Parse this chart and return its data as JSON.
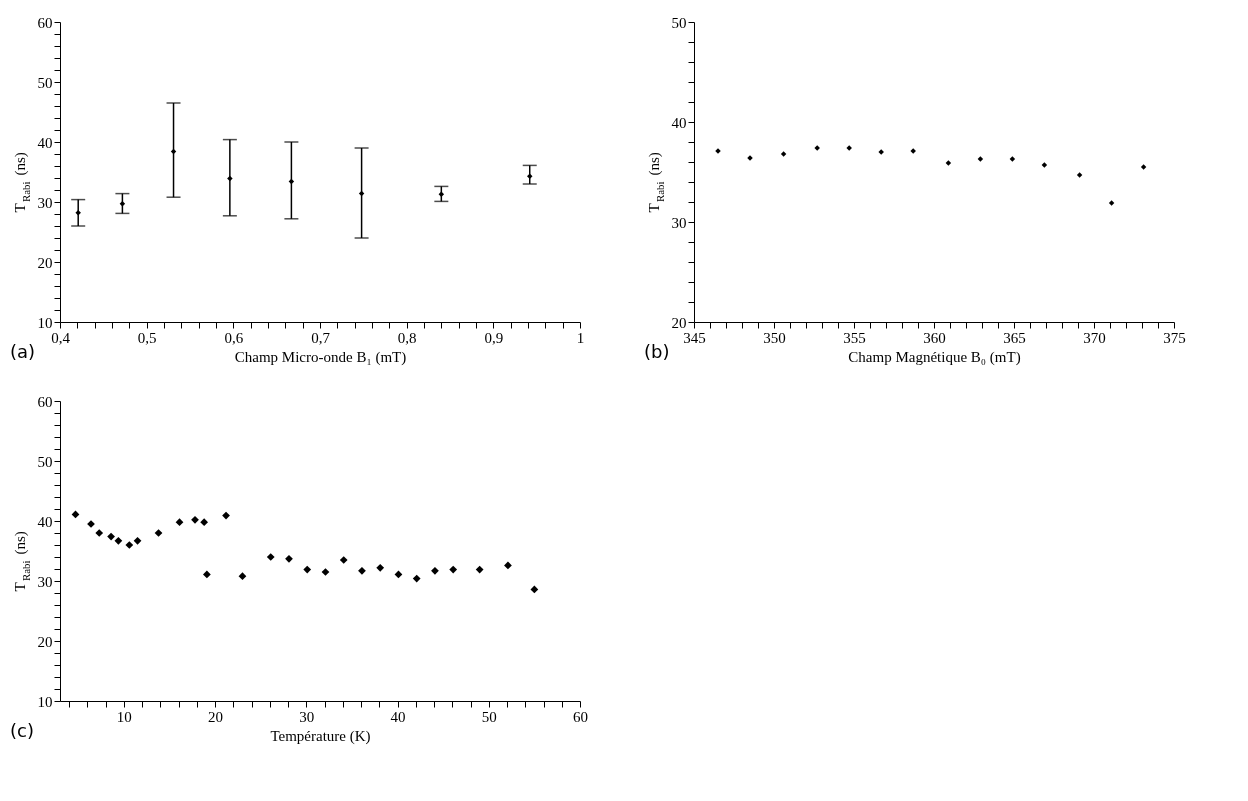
{
  "chart_data": [
    {
      "type": "scatter",
      "xlabel": "Champ Micro-onde B₁ (mT)",
      "ylabel": "T$_{Rabi}$ (ns)",
      "annotations": [
        "(a)"
      ],
      "marker": "diamond",
      "grid": false,
      "x": [
        0.421,
        0.472,
        0.531,
        0.596,
        0.667,
        0.748,
        0.84,
        0.942
      ],
      "series": [
        {
          "color": "#000000",
          "values": [
            28.2,
            29.7,
            38.4,
            33.9,
            33.4,
            31.4,
            31.3,
            34.3
          ],
          "errors": [
            [
              26.0,
              30.4
            ],
            [
              28.1,
              31.4
            ],
            [
              30.8,
              46.5
            ],
            [
              27.7,
              40.4
            ],
            [
              27.2,
              40.0
            ],
            [
              24.0,
              39.0
            ],
            [
              30.1,
              32.6
            ],
            [
              33.0,
              36.1
            ]
          ]
        }
      ],
      "xlim": [
        0.4,
        1
      ],
      "ylim": [
        10,
        60
      ],
      "xticks": [
        {
          "value": 0.4,
          "label": "0,4"
        },
        {
          "value": 0.42,
          "label": null
        },
        {
          "value": 0.44,
          "label": null
        },
        {
          "value": 0.46,
          "label": null
        },
        {
          "value": 0.48,
          "label": null
        },
        {
          "value": 0.5,
          "label": "0,5"
        },
        {
          "value": 0.52,
          "label": null
        },
        {
          "value": 0.54,
          "label": null
        },
        {
          "value": 0.56,
          "label": null
        },
        {
          "value": 0.58,
          "label": null
        },
        {
          "value": 0.6,
          "label": "0,6"
        },
        {
          "value": 0.62,
          "label": null
        },
        {
          "value": 0.64,
          "label": null
        },
        {
          "value": 0.66,
          "label": null
        },
        {
          "value": 0.68,
          "label": null
        },
        {
          "value": 0.7,
          "label": "0,7"
        },
        {
          "value": 0.72,
          "label": null
        },
        {
          "value": 0.74,
          "label": null
        },
        {
          "value": 0.76,
          "label": null
        },
        {
          "value": 0.78,
          "label": null
        },
        {
          "value": 0.8,
          "label": "0,8"
        },
        {
          "value": 0.82,
          "label": null
        },
        {
          "value": 0.84,
          "label": null
        },
        {
          "value": 0.86,
          "label": null
        },
        {
          "value": 0.88,
          "label": null
        },
        {
          "value": 0.9,
          "label": "0,9"
        },
        {
          "value": 0.92,
          "label": null
        },
        {
          "value": 0.94,
          "label": null
        },
        {
          "value": 0.96,
          "label": null
        },
        {
          "value": 0.98,
          "label": null
        },
        1
      ],
      "yticks": [
        10,
        {
          "value": 12,
          "label": null
        },
        {
          "value": 14,
          "label": null
        },
        {
          "value": 16,
          "label": null
        },
        {
          "value": 18,
          "label": null
        },
        20,
        {
          "value": 22,
          "label": null
        },
        {
          "value": 24,
          "label": null
        },
        {
          "value": 26,
          "label": null
        },
        {
          "value": 28,
          "label": null
        },
        30,
        {
          "value": 32,
          "label": null
        },
        {
          "value": 34,
          "label": null
        },
        {
          "value": 36,
          "label": null
        },
        {
          "value": 38,
          "label": null
        },
        40,
        {
          "value": 42,
          "label": null
        },
        {
          "value": 44,
          "label": null
        },
        {
          "value": 46,
          "label": null
        },
        {
          "value": 48,
          "label": null
        },
        50,
        {
          "value": 52,
          "label": null
        },
        {
          "value": 54,
          "label": null
        },
        {
          "value": 56,
          "label": null
        },
        {
          "value": 58,
          "label": null
        },
        60
      ]
    },
    {
      "type": "scatter",
      "xlabel": "Champ Magnétique B₀ (mT)",
      "ylabel": "T$_{Rabi}$ (ns)",
      "annotations": [
        "(b)"
      ],
      "marker": "diamond",
      "grid": false,
      "x": [
        346.5,
        348.5,
        350.6,
        352.7,
        354.7,
        356.7,
        358.7,
        360.9,
        362.9,
        364.9,
        366.9,
        369.1,
        371.1,
        373.1
      ],
      "series": [
        {
          "color": "#000000",
          "values": [
            37.1,
            36.4,
            36.8,
            37.4,
            37.4,
            37.0,
            37.1,
            35.9,
            36.3,
            36.3,
            35.7,
            34.7,
            31.9,
            35.5
          ]
        }
      ],
      "xlim": [
        345,
        375
      ],
      "ylim": [
        20,
        50
      ],
      "xticks": [
        345,
        {
          "value": 346,
          "label": null
        },
        {
          "value": 347,
          "label": null
        },
        {
          "value": 348,
          "label": null
        },
        {
          "value": 349,
          "label": null
        },
        350,
        {
          "value": 351,
          "label": null
        },
        {
          "value": 352,
          "label": null
        },
        {
          "value": 353,
          "label": null
        },
        {
          "value": 354,
          "label": null
        },
        355,
        {
          "value": 356,
          "label": null
        },
        {
          "value": 357,
          "label": null
        },
        {
          "value": 358,
          "label": null
        },
        {
          "value": 359,
          "label": null
        },
        360,
        {
          "value": 361,
          "label": null
        },
        {
          "value": 362,
          "label": null
        },
        {
          "value": 363,
          "label": null
        },
        {
          "value": 364,
          "label": null
        },
        365,
        {
          "value": 366,
          "label": null
        },
        {
          "value": 367,
          "label": null
        },
        {
          "value": 368,
          "label": null
        },
        {
          "value": 369,
          "label": null
        },
        370,
        {
          "value": 371,
          "label": null
        },
        {
          "value": 372,
          "label": null
        },
        {
          "value": 373,
          "label": null
        },
        {
          "value": 374,
          "label": null
        },
        375
      ],
      "yticks": [
        20,
        {
          "value": 22,
          "label": null
        },
        {
          "value": 24,
          "label": null
        },
        {
          "value": 26,
          "label": null
        },
        {
          "value": 28,
          "label": null
        },
        30,
        {
          "value": 32,
          "label": null
        },
        {
          "value": 34,
          "label": null
        },
        {
          "value": 36,
          "label": null
        },
        {
          "value": 38,
          "label": null
        },
        40,
        {
          "value": 42,
          "label": null
        },
        {
          "value": 44,
          "label": null
        },
        {
          "value": 46,
          "label": null
        },
        {
          "value": 48,
          "label": null
        },
        50
      ]
    },
    {
      "type": "scatter",
      "xlabel": "Température (K)",
      "ylabel": "T$_{Rabi}$ (ns)",
      "annotations": [
        "(c)"
      ],
      "marker": "diamond",
      "grid": false,
      "x": [
        4.7,
        6.4,
        7.3,
        8.6,
        9.4,
        10.6,
        11.5,
        13.8,
        16.1,
        17.8,
        18.8,
        19.1,
        21.2,
        23.0,
        26.1,
        28.1,
        30.1,
        32.1,
        34.1,
        36.1,
        38.1,
        40.1,
        42.1,
        44.1,
        46.1,
        49.0,
        52.1,
        55.0
      ],
      "series": [
        {
          "color": "#000000",
          "values": [
            41.1,
            39.5,
            38.0,
            37.4,
            36.7,
            36.0,
            36.7,
            38.0,
            39.8,
            40.2,
            39.8,
            31.1,
            40.9,
            30.8,
            34.0,
            33.7,
            31.9,
            31.5,
            33.5,
            31.7,
            32.2,
            31.1,
            30.4,
            31.7,
            31.9,
            31.9,
            32.6,
            28.6
          ]
        }
      ],
      "xlim": [
        3,
        60
      ],
      "ylim": [
        10,
        60
      ],
      "xticks": [
        {
          "value": 4,
          "label": null
        },
        {
          "value": 6,
          "label": null
        },
        {
          "value": 8,
          "label": null
        },
        10,
        {
          "value": 12,
          "label": null
        },
        {
          "value": 14,
          "label": null
        },
        {
          "value": 16,
          "label": null
        },
        {
          "value": 18,
          "label": null
        },
        20,
        {
          "value": 22,
          "label": null
        },
        {
          "value": 24,
          "label": null
        },
        {
          "value": 26,
          "label": null
        },
        {
          "value": 28,
          "label": null
        },
        30,
        {
          "value": 32,
          "label": null
        },
        {
          "value": 34,
          "label": null
        },
        {
          "value": 36,
          "label": null
        },
        {
          "value": 38,
          "label": null
        },
        40,
        {
          "value": 42,
          "label": null
        },
        {
          "value": 44,
          "label": null
        },
        {
          "value": 46,
          "label": null
        },
        {
          "value": 48,
          "label": null
        },
        50,
        {
          "value": 52,
          "label": null
        },
        {
          "value": 54,
          "label": null
        },
        {
          "value": 56,
          "label": null
        },
        {
          "value": 58,
          "label": null
        },
        60
      ],
      "yticks": [
        10,
        {
          "value": 12,
          "label": null
        },
        {
          "value": 14,
          "label": null
        },
        {
          "value": 16,
          "label": null
        },
        {
          "value": 18,
          "label": null
        },
        20,
        {
          "value": 22,
          "label": null
        },
        {
          "value": 24,
          "label": null
        },
        {
          "value": 26,
          "label": null
        },
        {
          "value": 28,
          "label": null
        },
        30,
        {
          "value": 32,
          "label": null
        },
        {
          "value": 34,
          "label": null
        },
        {
          "value": 36,
          "label": null
        },
        {
          "value": 38,
          "label": null
        },
        40,
        {
          "value": 42,
          "label": null
        },
        {
          "value": 44,
          "label": null
        },
        {
          "value": 46,
          "label": null
        },
        {
          "value": 48,
          "label": null
        },
        50,
        {
          "value": 52,
          "label": null
        },
        {
          "value": 54,
          "label": null
        },
        {
          "value": 56,
          "label": null
        },
        {
          "value": 58,
          "label": null
        },
        60
      ]
    }
  ]
}
